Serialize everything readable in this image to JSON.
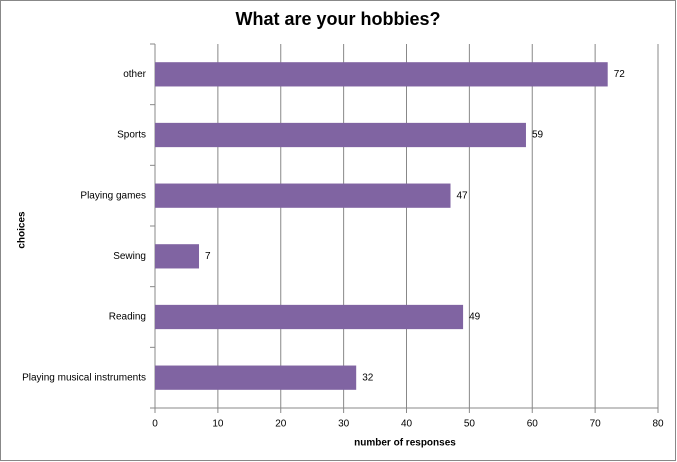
{
  "chart_data": {
    "type": "bar",
    "orientation": "horizontal",
    "title": "What are your hobbies?",
    "x_label": "number of responses",
    "y_label": "choices",
    "categories": [
      "other",
      "Sports",
      "Playing games",
      "Sewing",
      "Reading",
      "Playing musical instruments"
    ],
    "values": [
      72,
      59,
      47,
      7,
      49,
      32
    ],
    "color": "#8064a2",
    "xlim": [
      0,
      80
    ],
    "xticks": [
      0,
      10,
      20,
      30,
      40,
      50,
      60,
      70,
      80
    ],
    "grid": true
  }
}
